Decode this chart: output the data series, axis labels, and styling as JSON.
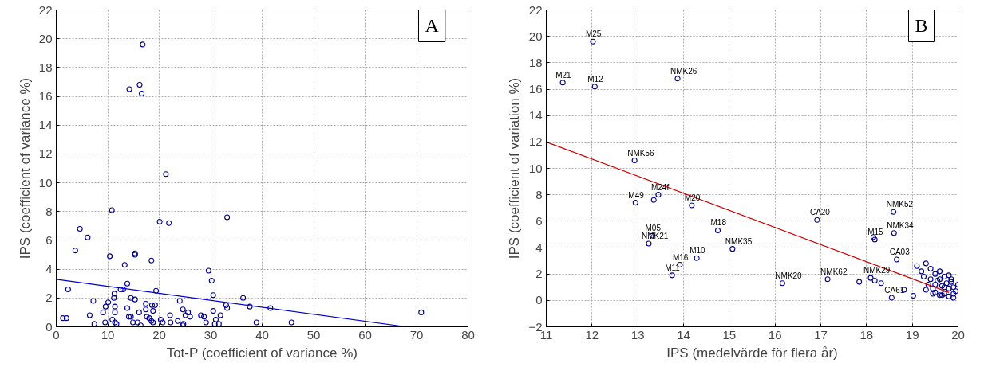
{
  "chart_data": [
    {
      "type": "scatter",
      "xlabel": "Tot-P (coefficient of variance %)",
      "ylabel": "IPS (coefficient of variance %)",
      "xlim": [
        0,
        80
      ],
      "ylim": [
        0,
        22
      ],
      "xticks": [
        0,
        10,
        20,
        30,
        40,
        50,
        60,
        70,
        80
      ],
      "yticks": [
        0,
        2,
        4,
        6,
        8,
        10,
        12,
        14,
        16,
        18,
        20,
        22
      ],
      "grid": true,
      "annotations": [
        "A"
      ],
      "series": [
        {
          "color": "#00008b",
          "marker": "circle",
          "x": [
            16.8,
            14.2,
            16.2,
            16.6,
            21.3,
            10.8,
            20.1,
            21.9,
            33.2,
            4.6,
            6.1,
            3.7,
            10.4,
            15.3,
            15.3,
            18.5,
            13.3,
            29.6,
            30.2,
            13.8,
            2.3,
            12.5,
            13.0,
            19.4,
            11.3,
            30.5,
            11.2,
            14.5,
            15.3,
            7.2,
            24.0,
            36.3,
            10.1,
            17.4,
            18.6,
            19.2,
            9.6,
            11.4,
            13.8,
            17.4,
            24.6,
            33.0,
            33.2,
            37.6,
            41.6,
            9.1,
            11.4,
            16.1,
            18.8,
            25.6,
            30.5,
            70.9,
            6.5,
            1.3,
            2.0,
            14.1,
            14.5,
            17.6,
            18.1,
            22.1,
            25.1,
            26.0,
            28.1,
            28.7,
            31.9,
            10.9,
            31.0,
            20.3,
            23.6,
            7.4,
            9.5,
            11.4,
            11.7,
            14.9,
            15.8,
            18.5,
            18.8,
            20.7,
            22.2,
            24.7,
            29.1,
            30.8,
            31.6,
            38.9,
            45.7,
            16.4,
            24.6
          ],
          "values": [
            19.6,
            16.5,
            16.8,
            16.2,
            10.6,
            8.1,
            7.3,
            7.2,
            7.6,
            6.8,
            6.2,
            5.3,
            4.9,
            5.1,
            5.0,
            4.6,
            4.3,
            3.9,
            3.2,
            3.0,
            2.6,
            2.6,
            2.6,
            2.5,
            2.3,
            2.2,
            2.0,
            2.0,
            1.9,
            1.8,
            1.8,
            2.0,
            1.7,
            1.6,
            1.5,
            1.5,
            1.4,
            1.4,
            1.3,
            1.2,
            1.2,
            1.5,
            1.3,
            1.4,
            1.3,
            1.0,
            1.0,
            1.0,
            1.1,
            1.0,
            1.1,
            1.0,
            0.8,
            0.6,
            0.6,
            0.7,
            0.7,
            0.7,
            0.6,
            0.8,
            0.8,
            0.7,
            0.8,
            0.7,
            0.8,
            0.5,
            0.5,
            0.5,
            0.4,
            0.2,
            0.3,
            0.3,
            0.2,
            0.3,
            0.3,
            0.4,
            0.3,
            0.3,
            0.3,
            0.2,
            0.3,
            0.2,
            0.2,
            0.3,
            0.3,
            0.1,
            0.1
          ]
        },
        {
          "type": "line",
          "color": "#0000cc",
          "x": [
            0,
            68
          ],
          "values": [
            3.3,
            0
          ]
        }
      ]
    },
    {
      "type": "scatter",
      "xlabel": "IPS (medelvärde för flera år)",
      "ylabel": "IPS (coefficient of variation %)",
      "xlim": [
        11,
        20
      ],
      "ylim": [
        -2,
        22
      ],
      "xticks": [
        11,
        12,
        13,
        14,
        15,
        16,
        17,
        18,
        19,
        20
      ],
      "yticks": [
        -2,
        0,
        2,
        4,
        6,
        8,
        10,
        12,
        14,
        16,
        18,
        20,
        22
      ],
      "grid": true,
      "annotations": [
        "B",
        {
          "text": "M25",
          "x": 12.02,
          "y": 19.6
        },
        {
          "text": "M21",
          "x": 11.36,
          "y": 16.5
        },
        {
          "text": "M12",
          "x": 12.06,
          "y": 16.2
        },
        {
          "text": "NMK26",
          "x": 13.87,
          "y": 16.8
        },
        {
          "text": "NMK56",
          "x": 12.93,
          "y": 10.6
        },
        {
          "text": "M49",
          "x": 12.95,
          "y": 7.4
        },
        {
          "text": "M24f",
          "x": 13.45,
          "y": 8.0
        },
        {
          "text": "M20",
          "x": 14.18,
          "y": 7.2
        },
        {
          "text": "M05",
          "x": 13.32,
          "y": 4.9
        },
        {
          "text": "NMK21",
          "x": 13.24,
          "y": 4.3
        },
        {
          "text": "M18",
          "x": 14.75,
          "y": 5.3
        },
        {
          "text": "NMK35",
          "x": 15.07,
          "y": 3.9
        },
        {
          "text": "M10",
          "x": 14.29,
          "y": 3.2
        },
        {
          "text": "M16",
          "x": 13.92,
          "y": 2.7
        },
        {
          "text": "M11",
          "x": 13.75,
          "y": 1.9
        },
        {
          "text": "NMK20",
          "x": 16.16,
          "y": 1.3
        },
        {
          "text": "NMK62",
          "x": 17.15,
          "y": 1.6
        },
        {
          "text": "CA20",
          "x": 16.92,
          "y": 6.1
        },
        {
          "text": "NMK52",
          "x": 18.59,
          "y": 6.7
        },
        {
          "text": "NMK34",
          "x": 18.6,
          "y": 5.1
        },
        {
          "text": "M15",
          "x": 18.18,
          "y": 4.6
        },
        {
          "text": "CA03",
          "x": 18.66,
          "y": 3.1
        },
        {
          "text": "NMK29",
          "x": 18.09,
          "y": 1.7
        },
        {
          "text": "CA61",
          "x": 18.55,
          "y": 0.2
        }
      ],
      "series": [
        {
          "color": "#00008b",
          "marker": "circle",
          "x": [
            12.02,
            11.36,
            12.06,
            13.87,
            12.93,
            12.95,
            13.35,
            13.45,
            14.18,
            13.32,
            13.24,
            14.75,
            15.07,
            14.29,
            13.92,
            13.75,
            16.16,
            17.15,
            16.92,
            18.59,
            18.6,
            18.15,
            18.18,
            18.66,
            18.55,
            17.84,
            19.02,
            18.82,
            18.32,
            18.09,
            18.18,
            19.1,
            19.2,
            19.25,
            19.3,
            19.35,
            19.4,
            19.45,
            19.5,
            19.5,
            19.55,
            19.6,
            19.6,
            19.65,
            19.7,
            19.7,
            19.75,
            19.8,
            19.8,
            19.85,
            19.9,
            19.9,
            19.95,
            20.0,
            19.3,
            19.4,
            19.5,
            19.6,
            19.7,
            19.8,
            19.9,
            19.45,
            19.65,
            19.85
          ],
          "values": [
            19.6,
            16.5,
            16.2,
            16.8,
            10.6,
            7.4,
            7.6,
            8.0,
            7.2,
            4.9,
            4.3,
            5.3,
            3.9,
            3.2,
            2.7,
            1.9,
            1.3,
            1.6,
            6.1,
            6.7,
            5.1,
            4.8,
            4.6,
            3.1,
            0.2,
            1.4,
            0.35,
            0.8,
            1.3,
            1.7,
            1.5,
            2.6,
            2.2,
            1.8,
            2.8,
            1.2,
            2.4,
            0.9,
            2.0,
            0.6,
            1.5,
            2.2,
            0.4,
            1.1,
            1.8,
            0.5,
            1.3,
            0.9,
            0.3,
            1.6,
            1.0,
            0.2,
            0.7,
            1.2,
            0.8,
            1.6,
            1.2,
            1.6,
            1.0,
            1.9,
            0.5,
            0.5,
            0.4,
            1.4
          ]
        },
        {
          "type": "line",
          "color": "#cc0000",
          "x": [
            11,
            19.8
          ],
          "values": [
            12,
            0.6
          ]
        }
      ]
    }
  ]
}
